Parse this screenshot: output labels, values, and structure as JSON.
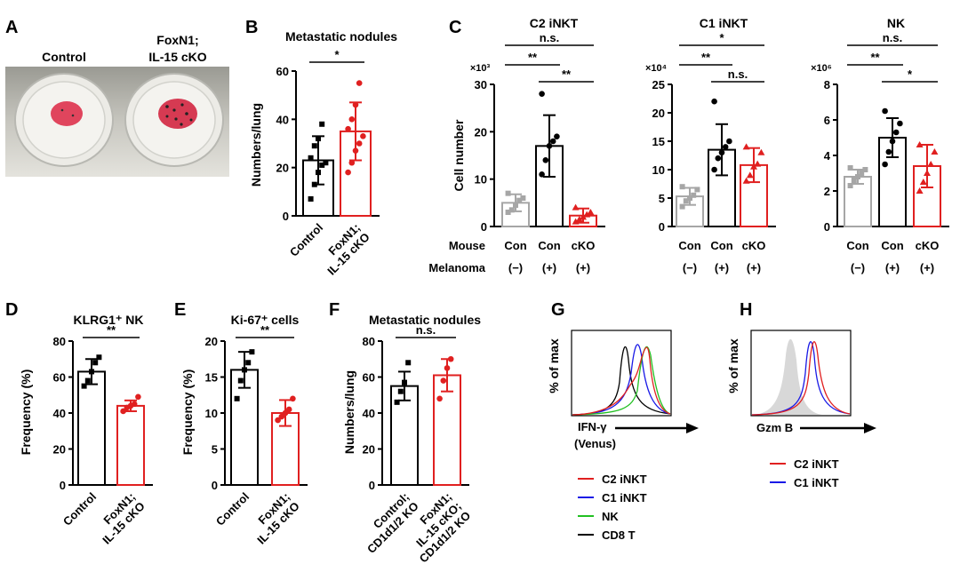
{
  "panels": {
    "A": {
      "label": "A",
      "col_control": "Control",
      "col_ko_line1": "FoxN1;",
      "col_ko_line2": "IL-15 cKO"
    },
    "B": {
      "label": "B"
    },
    "C": {
      "label": "C"
    },
    "D": {
      "label": "D"
    },
    "E": {
      "label": "E"
    },
    "F": {
      "label": "F"
    },
    "G": {
      "label": "G",
      "ylabel": "% of max",
      "xlabel_line1": "IFN-γ",
      "xlabel_line2": "(Venus)",
      "legend": [
        {
          "name": "C2 iNKT",
          "color": "#e02020"
        },
        {
          "name": "C1 iNKT",
          "color": "#1a1ae6"
        },
        {
          "name": "NK",
          "color": "#22c022"
        },
        {
          "name": "CD8 T",
          "color": "#000000"
        }
      ]
    },
    "H": {
      "label": "H",
      "ylabel": "% of max",
      "xlabel": "Gzm B",
      "legend": [
        {
          "name": "C2 iNKT",
          "color": "#e02020"
        },
        {
          "name": "C1 iNKT",
          "color": "#1a1ae6"
        }
      ]
    }
  },
  "row_labels": {
    "mouse": "Mouse",
    "melanoma": "Melanoma",
    "con": "Con",
    "cko": "cKO",
    "minus": "(−)",
    "plus": "(+)"
  },
  "colors": {
    "black": "#000000",
    "red": "#e02020",
    "gray": "#a6a6a6"
  },
  "chart_data": [
    {
      "id": "B",
      "type": "bar",
      "title": "Metastatic nodules",
      "ylabel": "Numbers/lung",
      "ylim": [
        0,
        60
      ],
      "yticks": [
        0,
        20,
        40,
        60
      ],
      "categories": [
        "Control",
        "FoxN1; IL-15 cKO"
      ],
      "values": [
        23,
        35
      ],
      "errors": [
        10,
        12
      ],
      "colors": [
        "black",
        "red"
      ],
      "points": [
        [
          7,
          13,
          18,
          21,
          22,
          24,
          29,
          32,
          38
        ],
        [
          18,
          22,
          27,
          30,
          33,
          36,
          40,
          46,
          55
        ]
      ],
      "sig": [
        {
          "a": 0,
          "b": 1,
          "text": "*"
        }
      ]
    },
    {
      "id": "C1",
      "type": "bar",
      "title": "C2 iNKT",
      "ylabel": "Cell number",
      "multiplier": "×10³",
      "ylim": [
        0,
        30
      ],
      "yticks": [
        0,
        10,
        20,
        30
      ],
      "categories": [
        "Con (−)",
        "Con (+)",
        "cKO (+)"
      ],
      "values": [
        5,
        17,
        2.3
      ],
      "errors": [
        1.8,
        6.5,
        1.5
      ],
      "colors": [
        "gray",
        "black",
        "red"
      ],
      "points": [
        [
          3,
          3.5,
          4.5,
          5.5,
          6,
          7
        ],
        [
          11,
          14,
          17,
          18,
          19,
          28
        ],
        [
          1,
          1.5,
          2,
          2.5,
          3,
          4
        ]
      ],
      "sig": [
        {
          "a": 0,
          "b": 2,
          "text": "n.s."
        },
        {
          "a": 0,
          "b": 1,
          "text": "**"
        },
        {
          "a": 1,
          "b": 2,
          "text": "**"
        }
      ]
    },
    {
      "id": "C2",
      "type": "bar",
      "title": "C1 iNKT",
      "multiplier": "×10⁴",
      "ylim": [
        0,
        25
      ],
      "yticks": [
        0,
        5,
        10,
        15,
        20,
        25
      ],
      "categories": [
        "Con (−)",
        "Con (+)",
        "cKO (+)"
      ],
      "values": [
        5.3,
        13.5,
        10.8
      ],
      "errors": [
        1.5,
        4.5,
        3
      ],
      "colors": [
        "gray",
        "black",
        "red"
      ],
      "points": [
        [
          3.5,
          4.5,
          5,
          5.5,
          6.5,
          7
        ],
        [
          10,
          12,
          13,
          14,
          15,
          22
        ],
        [
          8,
          9,
          10.5,
          11,
          13,
          14
        ]
      ],
      "sig": [
        {
          "a": 0,
          "b": 2,
          "text": "*"
        },
        {
          "a": 0,
          "b": 1,
          "text": "**"
        },
        {
          "a": 1,
          "b": 2,
          "text": "n.s."
        }
      ]
    },
    {
      "id": "C3",
      "type": "bar",
      "title": "NK",
      "multiplier": "×10⁶",
      "ylim": [
        0,
        8
      ],
      "yticks": [
        0,
        2,
        4,
        6,
        8
      ],
      "categories": [
        "Con (−)",
        "Con (+)",
        "cKO (+)"
      ],
      "values": [
        2.8,
        5,
        3.4
      ],
      "errors": [
        0.4,
        1.1,
        1.2
      ],
      "colors": [
        "gray",
        "black",
        "red"
      ],
      "points": [
        [
          2.3,
          2.6,
          2.8,
          3,
          3.2,
          3.3
        ],
        [
          3.5,
          4.2,
          4.8,
          5.3,
          5.8,
          6.5
        ],
        [
          2,
          2.5,
          3,
          3.5,
          4.2,
          4.6
        ]
      ],
      "sig": [
        {
          "a": 0,
          "b": 2,
          "text": "n.s."
        },
        {
          "a": 0,
          "b": 1,
          "text": "**"
        },
        {
          "a": 1,
          "b": 2,
          "text": "*"
        }
      ]
    },
    {
      "id": "D",
      "type": "bar",
      "title": "KLRG1⁺ NK",
      "ylabel": "Frequency (%)",
      "ylim": [
        0,
        80
      ],
      "yticks": [
        0,
        20,
        40,
        60,
        80
      ],
      "categories": [
        "Control",
        "FoxN1; IL-15 cKO"
      ],
      "values": [
        63,
        44
      ],
      "errors": [
        7,
        3
      ],
      "colors": [
        "black",
        "red"
      ],
      "points": [
        [
          55,
          58,
          63,
          68,
          71
        ],
        [
          41,
          43,
          44,
          45,
          49
        ]
      ],
      "sig": [
        {
          "a": 0,
          "b": 1,
          "text": "**"
        }
      ]
    },
    {
      "id": "E",
      "type": "bar",
      "title": "Ki-67⁺ cells",
      "ylabel": "Frequency (%)",
      "ylim": [
        0,
        20
      ],
      "yticks": [
        0,
        5,
        10,
        15,
        20
      ],
      "categories": [
        "Control",
        "FoxN1; IL-15 cKO"
      ],
      "values": [
        16,
        10
      ],
      "errors": [
        2.5,
        1.8
      ],
      "colors": [
        "black",
        "red"
      ],
      "points": [
        [
          12,
          14.5,
          16,
          17,
          18.5
        ],
        [
          9,
          9.5,
          10,
          10.5,
          12
        ]
      ],
      "sig": [
        {
          "a": 0,
          "b": 1,
          "text": "**"
        }
      ]
    },
    {
      "id": "F",
      "type": "bar",
      "title": "Metastatic nodules",
      "ylabel": "Numbers/lung",
      "ylim": [
        0,
        80
      ],
      "yticks": [
        0,
        20,
        40,
        60,
        80
      ],
      "categories": [
        "Control; CD1d1/2 KO",
        "FoxN1; IL-15 cKO; CD1d1/2 KO"
      ],
      "values": [
        55,
        61
      ],
      "errors": [
        8,
        9
      ],
      "colors": [
        "black",
        "red"
      ],
      "points": [
        [
          46,
          52,
          57,
          68
        ],
        [
          48,
          58,
          65,
          70
        ]
      ],
      "sig": [
        {
          "a": 0,
          "b": 1,
          "text": "n.s."
        }
      ]
    }
  ]
}
